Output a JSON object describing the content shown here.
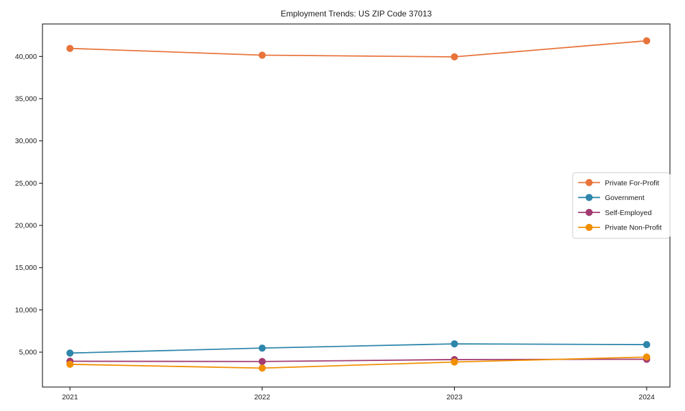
{
  "chart_data": {
    "type": "line",
    "title": "Employment Trends: US ZIP Code 37013",
    "xlabel": "",
    "ylabel": "",
    "x": [
      2021,
      2022,
      2023,
      2024
    ],
    "xtick_labels": [
      "2021",
      "2022",
      "2023",
      "2024"
    ],
    "yticks": [
      5000,
      10000,
      15000,
      20000,
      25000,
      30000,
      35000,
      40000
    ],
    "ytick_labels": [
      "5,000",
      "10,000",
      "15,000",
      "20,000",
      "25,000",
      "30,000",
      "35,000",
      "40,000"
    ],
    "ylim": [
      870,
      43840
    ],
    "xlim": [
      2020.857,
      2024.121
    ],
    "grid": false,
    "legend_position": "center right",
    "series": [
      {
        "name": "Private For-Profit",
        "color": "#E8743B",
        "values": [
          40950,
          40150,
          39950,
          41850
        ]
      },
      {
        "name": "Government",
        "color": "#2E86AB",
        "values": [
          4890,
          5480,
          5980,
          5890
        ]
      },
      {
        "name": "Self-Employed",
        "color": "#A23B72",
        "values": [
          3920,
          3890,
          4120,
          4160
        ]
      },
      {
        "name": "Private Non-Profit",
        "color": "#F18F01",
        "values": [
          3560,
          3110,
          3830,
          4420
        ]
      }
    ],
    "axis_color": "#000000",
    "legend_border_color": "#cccccc",
    "legend_background": "#ffffff"
  }
}
